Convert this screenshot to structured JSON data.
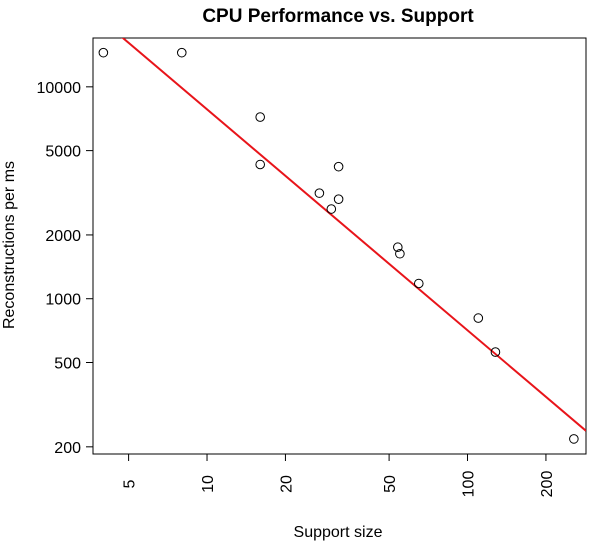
{
  "chart_data": {
    "type": "scatter",
    "title": "CPU Performance vs. Support",
    "xlabel": "Support size",
    "ylabel": "Reconstructions per ms",
    "x_scale": "log",
    "y_scale": "log",
    "xlim": [
      3.65,
      285
    ],
    "ylim": [
      185,
      17000
    ],
    "x_ticks": [
      5,
      10,
      20,
      50,
      100,
      200
    ],
    "x_tick_labels": [
      "5",
      "10",
      "20",
      "50",
      "100",
      "200"
    ],
    "y_ticks": [
      200,
      500,
      1000,
      2000,
      5000,
      10000
    ],
    "y_tick_labels": [
      "200",
      "500",
      "1000",
      "2000",
      "5000",
      "10000"
    ],
    "grid": false,
    "legend": "none",
    "points": [
      {
        "x": 4,
        "y": 14500
      },
      {
        "x": 8,
        "y": 14500
      },
      {
        "x": 16,
        "y": 7200
      },
      {
        "x": 16,
        "y": 4300
      },
      {
        "x": 27,
        "y": 3150
      },
      {
        "x": 30,
        "y": 2650
      },
      {
        "x": 32,
        "y": 4200
      },
      {
        "x": 32,
        "y": 2950
      },
      {
        "x": 54,
        "y": 1750
      },
      {
        "x": 55,
        "y": 1630
      },
      {
        "x": 65,
        "y": 1180
      },
      {
        "x": 110,
        "y": 810
      },
      {
        "x": 128,
        "y": 560
      },
      {
        "x": 256,
        "y": 218
      }
    ],
    "fit_line": {
      "type": "linear (log-log)",
      "x": [
        3.65,
        285
      ],
      "y": [
        22400,
        238
      ]
    },
    "colors": {
      "points": "#000000",
      "fit_line": "#e8141a",
      "axes": "#000000"
    }
  }
}
